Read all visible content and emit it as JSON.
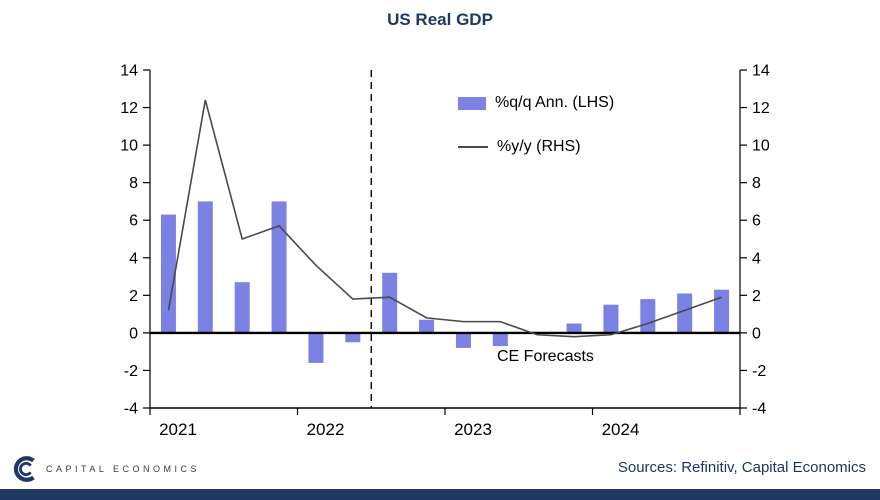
{
  "title": "US Real GDP",
  "colors": {
    "bar": "#7C81E4",
    "line": "#4a4a4a",
    "navy": "#1F3864",
    "axis": "#000000"
  },
  "chart_data": {
    "type": "bar+line",
    "x": [
      "2021 Q1",
      "2021 Q2",
      "2021 Q3",
      "2021 Q4",
      "2022 Q1",
      "2022 Q2",
      "2022 Q3",
      "2022 Q4",
      "2023 Q1",
      "2023 Q2",
      "2023 Q3",
      "2023 Q4",
      "2024 Q1",
      "2024 Q2",
      "2024 Q3",
      "2024 Q4"
    ],
    "year_labels": [
      "2021",
      "2022",
      "2023",
      "2024"
    ],
    "series": [
      {
        "name": "%q/q Ann. (LHS)",
        "type": "bar",
        "axis": "left",
        "values": [
          6.3,
          7.0,
          2.7,
          7.0,
          -1.6,
          -0.5,
          3.2,
          0.7,
          -0.8,
          -0.7,
          0.0,
          0.5,
          1.5,
          1.8,
          2.1,
          2.3
        ]
      },
      {
        "name": "%y/y (RHS)",
        "type": "line",
        "axis": "right",
        "values": [
          1.2,
          12.4,
          5.0,
          5.7,
          3.6,
          1.8,
          1.9,
          0.8,
          0.6,
          0.6,
          -0.1,
          -0.2,
          -0.1,
          0.5,
          1.2,
          1.9
        ]
      }
    ],
    "ylim": [
      -4,
      14
    ],
    "ytick_step": 2,
    "forecast_start_index": 6,
    "annotation": "CE Forecasts",
    "legend_position": "upper-center",
    "grid": false
  },
  "footer": {
    "logo_text": "CAPITAL ECONOMICS",
    "sources": "Sources: Refinitiv, Capital Economics"
  }
}
